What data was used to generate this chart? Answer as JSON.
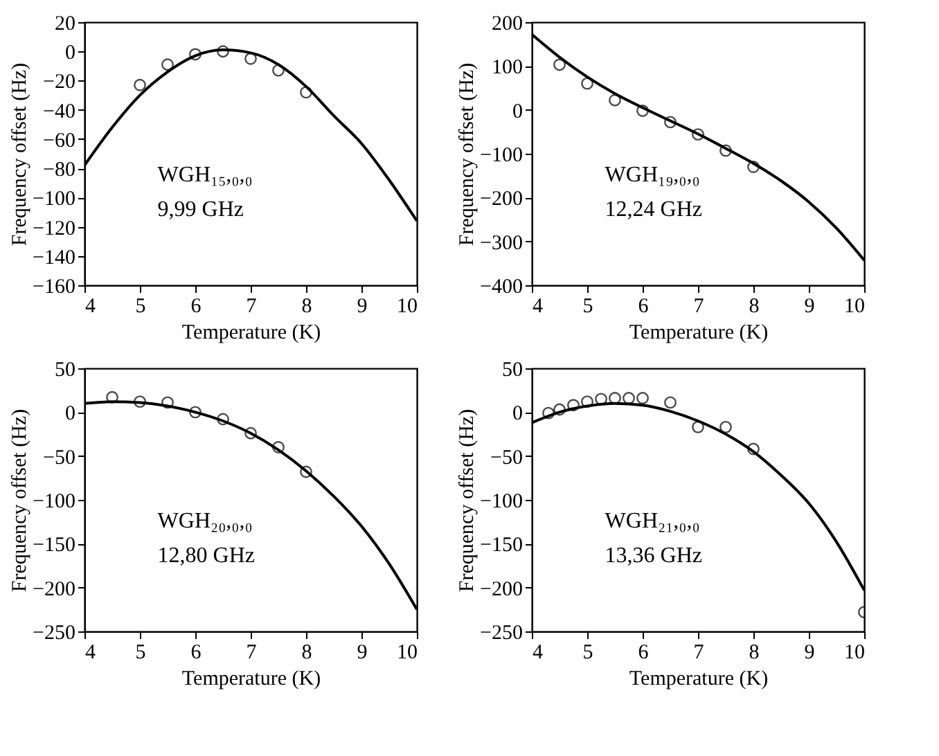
{
  "chart_data": [
    {
      "type": "scatter",
      "xlabel": "Temperature (K)",
      "ylabel": "Frequency offset (Hz)",
      "xlim": [
        4,
        10
      ],
      "ylim": [
        -160,
        20
      ],
      "xticks": [
        4,
        5,
        6,
        7,
        8,
        9,
        10
      ],
      "yticks": [
        -160,
        -140,
        -120,
        -100,
        -80,
        -60,
        -40,
        -20,
        0,
        20
      ],
      "grid": false,
      "annotations": [
        "WGH₁₅,₀,₀",
        "9,99 GHz"
      ],
      "series": [
        {
          "marker": "circle",
          "color": "#000000",
          "x": [
            5,
            5.5,
            6,
            6.5,
            7,
            7.5,
            8
          ],
          "values": [
            -23,
            -9,
            -2,
            0,
            -5,
            -13,
            -28
          ]
        },
        {
          "type": "line",
          "marker": "none",
          "color": "#000000",
          "x": [
            4,
            4.5,
            5,
            5.5,
            6,
            6.5,
            7,
            7.5,
            8,
            8.5,
            9,
            9.5,
            10
          ],
          "values": [
            -78,
            -52,
            -30,
            -14,
            -3,
            1,
            -1,
            -9,
            -24,
            -44,
            -63,
            -88,
            -116
          ]
        }
      ]
    },
    {
      "type": "scatter",
      "xlabel": "Temperature (K)",
      "ylabel": "Frequency offset (Hz)",
      "xlim": [
        4,
        10
      ],
      "ylim": [
        -400,
        200
      ],
      "xticks": [
        4,
        5,
        6,
        7,
        8,
        9,
        10
      ],
      "yticks": [
        -400,
        -300,
        -200,
        -100,
        0,
        100,
        200
      ],
      "grid": false,
      "annotations": [
        "WGH₁₉,₀,₀",
        "12,24 GHz"
      ],
      "series": [
        {
          "marker": "circle",
          "color": "#000000",
          "x": [
            4.5,
            5,
            5.5,
            6,
            6.5,
            7,
            7.5,
            8
          ],
          "values": [
            103,
            60,
            22,
            -2,
            -28,
            -56,
            -93,
            -130
          ]
        },
        {
          "type": "line",
          "marker": "none",
          "color": "#000000",
          "x": [
            4,
            4.5,
            5,
            5.5,
            6,
            6.5,
            7,
            7.5,
            8,
            8.5,
            9,
            9.5,
            10
          ],
          "values": [
            172,
            120,
            75,
            37,
            5,
            -25,
            -55,
            -88,
            -122,
            -162,
            -210,
            -270,
            -343
          ]
        }
      ]
    },
    {
      "type": "scatter",
      "xlabel": "Temperature (K)",
      "ylabel": "Frequency offset (Hz)",
      "xlim": [
        4,
        10
      ],
      "ylim": [
        -250,
        50
      ],
      "xticks": [
        4,
        5,
        6,
        7,
        8,
        9,
        10
      ],
      "yticks": [
        -250,
        -200,
        -150,
        -100,
        -50,
        0,
        50
      ],
      "grid": false,
      "annotations": [
        "WGH₂₀,₀,₀",
        "12,80 GHz"
      ],
      "series": [
        {
          "marker": "circle",
          "color": "#000000",
          "x": [
            4.5,
            5,
            5.5,
            6,
            6.5,
            7,
            7.5,
            8
          ],
          "values": [
            17,
            12,
            11,
            0,
            -8,
            -24,
            -40,
            -68
          ]
        },
        {
          "type": "line",
          "marker": "none",
          "color": "#000000",
          "x": [
            4,
            4.5,
            5,
            5.5,
            6,
            6.5,
            7,
            7.5,
            8,
            8.5,
            9,
            9.5,
            10
          ],
          "values": [
            10,
            12,
            11,
            7,
            0,
            -10,
            -24,
            -43,
            -67,
            -96,
            -130,
            -173,
            -225
          ]
        }
      ]
    },
    {
      "type": "scatter",
      "xlabel": "Temperature (K)",
      "ylabel": "Frequency offset (Hz)",
      "xlim": [
        4,
        10
      ],
      "ylim": [
        -250,
        50
      ],
      "xticks": [
        4,
        5,
        6,
        7,
        8,
        9,
        10
      ],
      "yticks": [
        -250,
        -200,
        -150,
        -100,
        -50,
        0,
        50
      ],
      "grid": false,
      "annotations": [
        "WGH₂₁,₀,₀",
        "13,36 GHz"
      ],
      "series": [
        {
          "marker": "circle",
          "color": "#000000",
          "x": [
            4.3,
            4.5,
            4.75,
            5,
            5.25,
            5.5,
            5.75,
            6,
            6.5,
            7,
            7.5,
            8,
            10
          ],
          "values": [
            -1,
            3,
            8,
            12,
            15,
            16,
            16,
            16,
            11,
            -17,
            -17,
            -42,
            -228
          ]
        },
        {
          "type": "line",
          "marker": "none",
          "color": "#000000",
          "x": [
            4,
            4.5,
            5,
            5.5,
            6,
            6.5,
            7,
            7.5,
            8,
            8.5,
            9,
            9.5,
            10
          ],
          "values": [
            -12,
            0,
            7,
            10,
            8,
            1,
            -10,
            -25,
            -45,
            -72,
            -104,
            -148,
            -203
          ]
        }
      ]
    }
  ]
}
